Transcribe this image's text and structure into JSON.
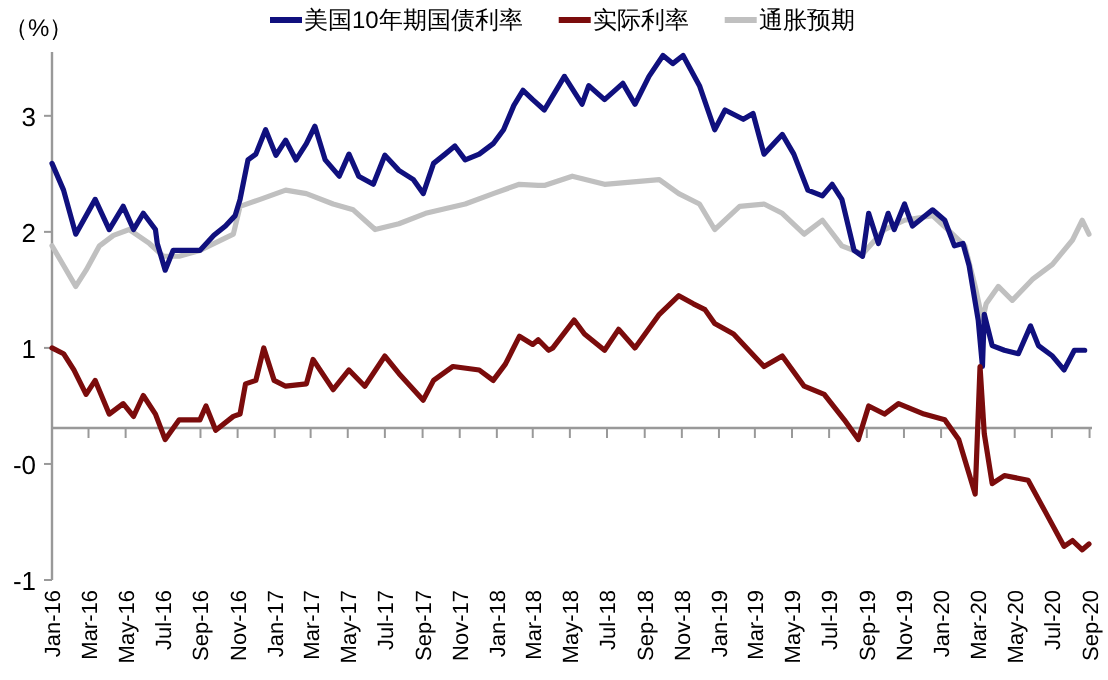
{
  "chart_data": {
    "type": "line",
    "ylabel": "（%）",
    "legend": "top",
    "line_style": "solid",
    "xlim": [
      "2016-01-01",
      "2020-09-05"
    ],
    "ylim": [
      -1,
      3.55
    ],
    "yticks": [
      3,
      2,
      1,
      {
        "value": 0,
        "label": "-0"
      },
      -1
    ],
    "xticks": [
      {
        "value": "2016-01-01",
        "label": "Jan-16"
      },
      {
        "value": "2016-03-01",
        "label": "Mar-16"
      },
      {
        "value": "2016-05-01",
        "label": "May-16"
      },
      {
        "value": "2016-07-01",
        "label": "Jul-16"
      },
      {
        "value": "2016-09-01",
        "label": "Sep-16"
      },
      {
        "value": "2016-11-01",
        "label": "Nov-16"
      },
      {
        "value": "2017-01-01",
        "label": "Jan-17"
      },
      {
        "value": "2017-03-01",
        "label": "Mar-17"
      },
      {
        "value": "2017-05-01",
        "label": "May-17"
      },
      {
        "value": "2017-07-01",
        "label": "Jul-17"
      },
      {
        "value": "2017-09-01",
        "label": "Sep-17"
      },
      {
        "value": "2017-11-01",
        "label": "Nov-17"
      },
      {
        "value": "2018-01-01",
        "label": "Jan-18"
      },
      {
        "value": "2018-03-01",
        "label": "Mar-18"
      },
      {
        "value": "2018-05-01",
        "label": "May-18"
      },
      {
        "value": "2018-07-01",
        "label": "Jul-18"
      },
      {
        "value": "2018-09-01",
        "label": "Sep-18"
      },
      {
        "value": "2018-11-01",
        "label": "Nov-18"
      },
      {
        "value": "2019-01-01",
        "label": "Jan-19"
      },
      {
        "value": "2019-03-01",
        "label": "Mar-19"
      },
      {
        "value": "2019-05-01",
        "label": "May-19"
      },
      {
        "value": "2019-07-01",
        "label": "Jul-19"
      },
      {
        "value": "2019-09-01",
        "label": "Sep-19"
      },
      {
        "value": "2019-11-01",
        "label": "Nov-19"
      },
      {
        "value": "2020-01-01",
        "label": "Jan-20"
      },
      {
        "value": "2020-03-01",
        "label": "Mar-20"
      },
      {
        "value": "2020-05-01",
        "label": "May-20"
      },
      {
        "value": "2020-07-01",
        "label": "Jul-20"
      },
      {
        "value": "2020-09-01",
        "label": "Sep-20"
      }
    ],
    "ref_lines": [
      {
        "axis": "y",
        "value": 0.31,
        "color": "#999999"
      }
    ],
    "series": [
      {
        "name": "通胀预期",
        "color": "#c0c0c0",
        "x": [
          "2016-01-01",
          "2016-01-20",
          "2016-02-09",
          "2016-02-26",
          "2016-03-19",
          "2016-04-11",
          "2016-05-07",
          "2016-06-09",
          "2016-07-02",
          "2016-07-28",
          "2016-08-31",
          "2016-10-25",
          "2016-11-05",
          "2016-12-08",
          "2017-01-19",
          "2017-02-22",
          "2017-04-07",
          "2017-05-10",
          "2017-06-15",
          "2017-07-24",
          "2017-09-06",
          "2017-11-10",
          "2017-12-26",
          "2018-02-07",
          "2018-03-10",
          "2018-03-20",
          "2018-05-05",
          "2018-06-27",
          "2018-09-25",
          "2018-10-27",
          "2018-11-30",
          "2018-12-25",
          "2019-02-04",
          "2019-03-16",
          "2019-04-15",
          "2019-05-21",
          "2019-06-20",
          "2019-07-22",
          "2019-08-25",
          "2019-09-30",
          "2019-11-02",
          "2019-12-18",
          "2020-01-20",
          "2020-02-09",
          "2020-02-26",
          "2020-03-09",
          "2020-03-15",
          "2020-04-04",
          "2020-04-27",
          "2020-05-30",
          "2020-07-02",
          "2020-08-04",
          "2020-08-20",
          "2020-08-31"
        ],
        "values": [
          1.88,
          1.71,
          1.53,
          1.67,
          1.88,
          1.97,
          2.02,
          1.9,
          1.79,
          1.79,
          1.84,
          1.98,
          2.22,
          2.28,
          2.36,
          2.33,
          2.24,
          2.19,
          2.02,
          2.07,
          2.16,
          2.24,
          2.33,
          2.41,
          2.4,
          2.4,
          2.48,
          2.41,
          2.45,
          2.33,
          2.24,
          2.02,
          2.22,
          2.24,
          2.16,
          1.98,
          2.1,
          1.88,
          1.81,
          2.02,
          2.1,
          2.14,
          1.98,
          1.88,
          1.53,
          1.24,
          1.38,
          1.53,
          1.41,
          1.59,
          1.72,
          1.93,
          2.1,
          1.98
        ]
      },
      {
        "name": "美国10年期国债利率",
        "color": "#10107e",
        "x": [
          "2016-01-01",
          "2016-01-20",
          "2016-02-09",
          "2016-03-12",
          "2016-04-04",
          "2016-04-27",
          "2016-05-14",
          "2016-05-30",
          "2016-06-19",
          "2016-06-22",
          "2016-07-05",
          "2016-07-18",
          "2016-08-31",
          "2016-09-23",
          "2016-10-12",
          "2016-10-28",
          "2016-11-05",
          "2016-11-18",
          "2016-12-01",
          "2016-12-17",
          "2017-01-03",
          "2017-01-19",
          "2017-02-05",
          "2017-02-22",
          "2017-03-08",
          "2017-03-25",
          "2017-04-17",
          "2017-05-03",
          "2017-05-19",
          "2017-06-12",
          "2017-07-01",
          "2017-07-24",
          "2017-08-17",
          "2017-09-02",
          "2017-09-19",
          "2017-10-08",
          "2017-10-24",
          "2017-11-10",
          "2017-12-03",
          "2017-12-26",
          "2018-01-12",
          "2018-01-29",
          "2018-02-13",
          "2018-03-01",
          "2018-03-20",
          "2018-04-13",
          "2018-04-22",
          "2018-05-21",
          "2018-06-01",
          "2018-06-27",
          "2018-07-27",
          "2018-08-16",
          "2018-09-08",
          "2018-10-01",
          "2018-10-17",
          "2018-11-03",
          "2018-11-30",
          "2018-12-25",
          "2019-01-11",
          "2019-02-10",
          "2019-02-26",
          "2019-03-16",
          "2019-04-15",
          "2019-05-04",
          "2019-05-27",
          "2019-06-20",
          "2019-07-06",
          "2019-07-22",
          "2019-08-11",
          "2019-08-25",
          "2019-09-04",
          "2019-09-20",
          "2019-10-06",
          "2019-10-16",
          "2019-11-02",
          "2019-11-15",
          "2019-12-18",
          "2020-01-07",
          "2020-01-23",
          "2020-02-06",
          "2020-02-16",
          "2020-03-02",
          "2020-03-09",
          "2020-03-12",
          "2020-03-25",
          "2020-04-14",
          "2020-05-07",
          "2020-05-27",
          "2020-06-09",
          "2020-07-02",
          "2020-07-21",
          "2020-08-07",
          "2020-08-24"
        ],
        "values": [
          2.59,
          2.36,
          1.98,
          2.28,
          2.02,
          2.22,
          2.02,
          2.16,
          2.02,
          1.9,
          1.67,
          1.84,
          1.84,
          1.97,
          2.05,
          2.14,
          2.28,
          2.62,
          2.67,
          2.88,
          2.66,
          2.79,
          2.62,
          2.76,
          2.91,
          2.62,
          2.48,
          2.67,
          2.48,
          2.41,
          2.66,
          2.53,
          2.45,
          2.33,
          2.59,
          2.67,
          2.74,
          2.62,
          2.67,
          2.76,
          2.88,
          3.09,
          3.22,
          3.14,
          3.05,
          3.26,
          3.34,
          3.1,
          3.26,
          3.14,
          3.28,
          3.1,
          3.34,
          3.52,
          3.45,
          3.52,
          3.26,
          2.88,
          3.05,
          2.97,
          3.02,
          2.67,
          2.84,
          2.67,
          2.36,
          2.31,
          2.41,
          2.28,
          1.84,
          1.79,
          2.16,
          1.9,
          2.16,
          2.02,
          2.24,
          2.05,
          2.19,
          2.1,
          1.88,
          1.9,
          1.71,
          1.24,
          0.84,
          1.29,
          1.02,
          0.98,
          0.95,
          1.19,
          1.02,
          0.93,
          0.81,
          0.98,
          0.98
        ]
      },
      {
        "name": "实际利率",
        "color": "#7b0c0c",
        "x": [
          "2016-01-01",
          "2016-01-20",
          "2016-02-06",
          "2016-02-26",
          "2016-03-12",
          "2016-04-04",
          "2016-04-27",
          "2016-05-14",
          "2016-05-30",
          "2016-06-19",
          "2016-07-05",
          "2016-07-28",
          "2016-08-31",
          "2016-09-10",
          "2016-09-26",
          "2016-10-25",
          "2016-11-05",
          "2016-11-14",
          "2016-12-01",
          "2016-12-14",
          "2016-12-31",
          "2017-01-19",
          "2017-02-22",
          "2017-03-05",
          "2017-04-07",
          "2017-05-03",
          "2017-05-29",
          "2017-07-01",
          "2017-07-24",
          "2017-09-02",
          "2017-09-19",
          "2017-10-21",
          "2017-12-03",
          "2017-12-26",
          "2018-01-15",
          "2018-02-07",
          "2018-03-01",
          "2018-03-10",
          "2018-03-27",
          "2018-04-03",
          "2018-05-08",
          "2018-05-25",
          "2018-06-27",
          "2018-07-20",
          "2018-08-16",
          "2018-09-25",
          "2018-10-27",
          "2018-11-20",
          "2018-12-09",
          "2018-12-25",
          "2019-01-25",
          "2019-03-16",
          "2019-04-15",
          "2019-05-21",
          "2019-06-23",
          "2019-07-26",
          "2019-08-18",
          "2019-09-04",
          "2019-09-30",
          "2019-10-23",
          "2019-12-04",
          "2020-01-07",
          "2020-01-30",
          "2020-02-26",
          "2020-03-05",
          "2020-03-12",
          "2020-03-25",
          "2020-04-14",
          "2020-05-23",
          "2020-06-19",
          "2020-07-21",
          "2020-08-04",
          "2020-08-20",
          "2020-08-31"
        ],
        "values": [
          1.0,
          0.95,
          0.81,
          0.6,
          0.72,
          0.43,
          0.52,
          0.41,
          0.59,
          0.43,
          0.21,
          0.38,
          0.38,
          0.5,
          0.29,
          0.41,
          0.43,
          0.69,
          0.72,
          1.0,
          0.72,
          0.67,
          0.69,
          0.9,
          0.64,
          0.81,
          0.67,
          0.93,
          0.78,
          0.55,
          0.72,
          0.84,
          0.81,
          0.72,
          0.86,
          1.1,
          1.03,
          1.07,
          0.98,
          1.0,
          1.24,
          1.12,
          0.98,
          1.16,
          1.0,
          1.29,
          1.45,
          1.38,
          1.33,
          1.21,
          1.12,
          0.84,
          0.93,
          0.67,
          0.6,
          0.38,
          0.21,
          0.5,
          0.43,
          0.52,
          0.43,
          0.38,
          0.21,
          -0.26,
          0.84,
          0.26,
          -0.17,
          -0.1,
          -0.14,
          -0.4,
          -0.71,
          -0.66,
          -0.74,
          -0.69
        ]
      }
    ]
  }
}
